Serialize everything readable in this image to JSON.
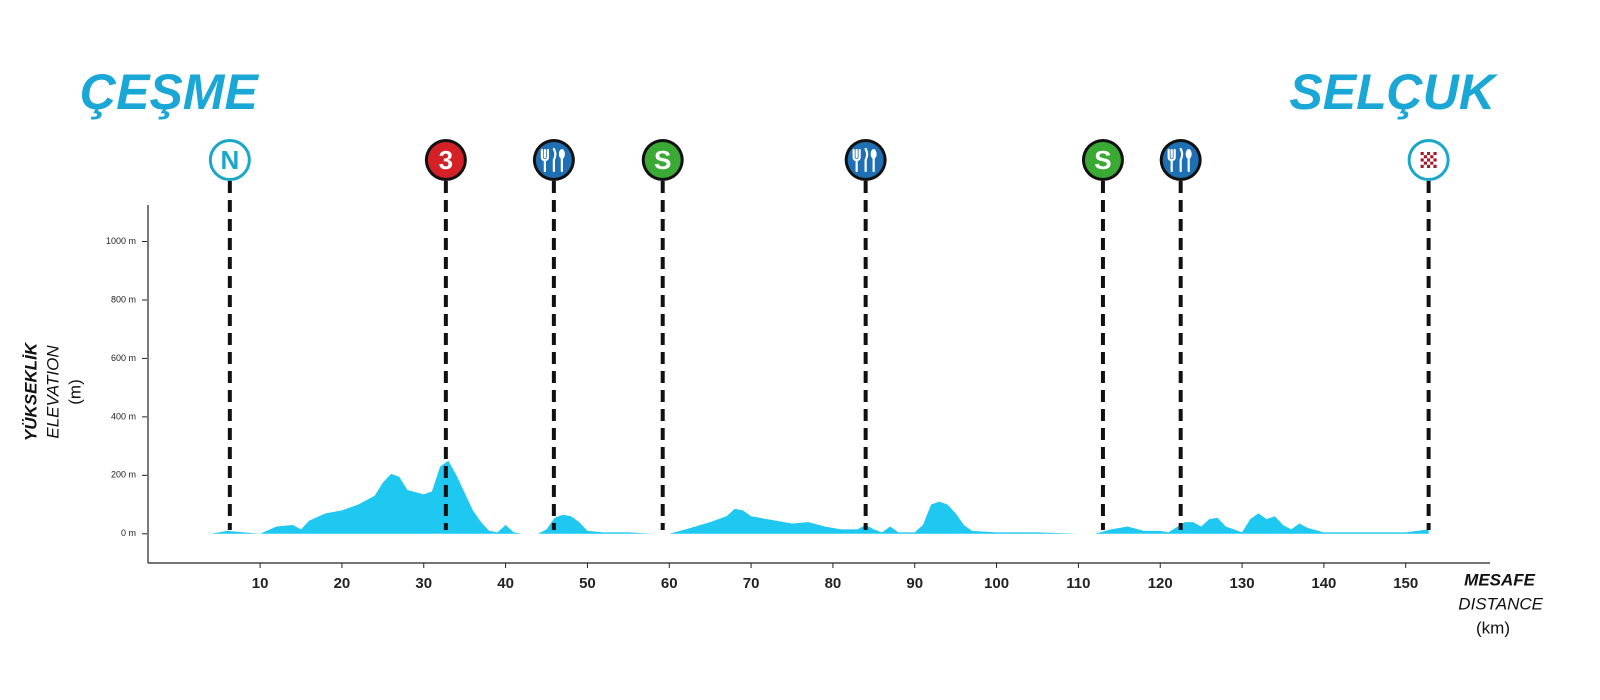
{
  "chart_data": {
    "type": "area",
    "start": "ÇEŞME",
    "finish": "SELÇUK",
    "ylabel": [
      "YÜKSEKLİK",
      "ELEVATION",
      "(m)"
    ],
    "xlabel": [
      "MESAFE",
      "DISTANCE",
      "(km)"
    ],
    "color": "#1ec8f0",
    "xlim": [
      -3.7,
      160.3
    ],
    "xticks": [
      10,
      20,
      30,
      40,
      50,
      60,
      70,
      80,
      90,
      100,
      110,
      120,
      130,
      140,
      150
    ],
    "ylim": [
      -100,
      1125
    ],
    "yticks": [
      {
        "value": 0,
        "label": "0 m"
      },
      {
        "value": 200,
        "label": "200 m"
      },
      {
        "value": 400,
        "label": "400 m"
      },
      {
        "value": 600,
        "label": "600 m"
      },
      {
        "value": 800,
        "label": "800 m"
      },
      {
        "value": 1000,
        "label": "1000 m"
      }
    ],
    "x": [
      4,
      6,
      8,
      10,
      12,
      14,
      15,
      16,
      18,
      20,
      22,
      24,
      25,
      26,
      27,
      28,
      30,
      31,
      32,
      33,
      34,
      35,
      36,
      37,
      38,
      39,
      40,
      41,
      42,
      44,
      45,
      46,
      47,
      48,
      49,
      50,
      52,
      55,
      58,
      60,
      62,
      65,
      67,
      68,
      69,
      70,
      73,
      75,
      77,
      79,
      81,
      83,
      84,
      85,
      86,
      87,
      88,
      90,
      91,
      92,
      93,
      94,
      95,
      96,
      97,
      100,
      105,
      110,
      112,
      114,
      116,
      118,
      120,
      121,
      123,
      124,
      125,
      126,
      127,
      128,
      129,
      130,
      131,
      132,
      133,
      134,
      135,
      136,
      137,
      138,
      140,
      145,
      150,
      152.8
    ],
    "values": [
      0,
      10,
      5,
      0,
      25,
      30,
      15,
      45,
      70,
      80,
      100,
      130,
      175,
      205,
      195,
      150,
      135,
      145,
      230,
      250,
      200,
      140,
      80,
      40,
      10,
      5,
      30,
      5,
      0,
      0,
      15,
      55,
      65,
      60,
      40,
      10,
      5,
      5,
      0,
      0,
      15,
      40,
      60,
      85,
      80,
      60,
      45,
      35,
      40,
      25,
      15,
      15,
      30,
      15,
      5,
      25,
      5,
      5,
      30,
      100,
      110,
      100,
      70,
      30,
      10,
      5,
      5,
      0,
      0,
      15,
      25,
      10,
      10,
      5,
      40,
      40,
      25,
      50,
      55,
      25,
      15,
      5,
      50,
      70,
      50,
      60,
      30,
      15,
      35,
      20,
      5,
      5,
      5,
      15
    ],
    "markers": [
      {
        "x": 6.3,
        "label": "N",
        "style": "ring",
        "color": "#1aa7c8"
      },
      {
        "x": 32.7,
        "label": "3",
        "style": "solid",
        "color": "#d42027"
      },
      {
        "x": 45.9,
        "style": "food",
        "color": "#1f6fb5"
      },
      {
        "x": 59.2,
        "label": "S",
        "style": "solid",
        "color": "#3aaa35"
      },
      {
        "x": 84.0,
        "style": "food",
        "color": "#1f6fb5"
      },
      {
        "x": 113.0,
        "label": "S",
        "style": "solid",
        "color": "#3aaa35"
      },
      {
        "x": 122.5,
        "style": "food",
        "color": "#1f6fb5"
      },
      {
        "x": 152.8,
        "style": "flag",
        "color": "#1aa7c8"
      }
    ]
  }
}
